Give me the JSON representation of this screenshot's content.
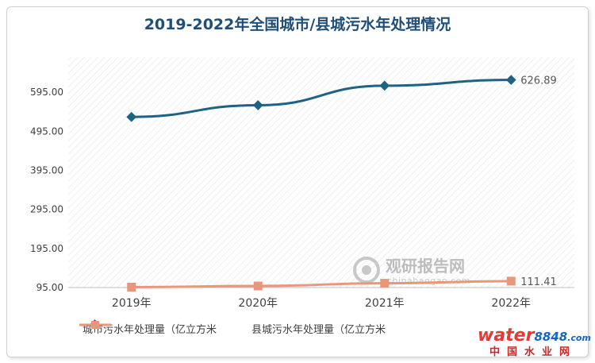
{
  "chart_data": {
    "type": "line",
    "title": "2019-2022年全国城市/县城污水年处理情况",
    "categories": [
      "2019年",
      "2020年",
      "2021年",
      "2022年"
    ],
    "series": [
      {
        "name": "城市污水年处理量（亿立方米",
        "values": [
          532.0,
          562.0,
          612.0,
          626.89
        ],
        "color": "#1f6384"
      },
      {
        "name": "县城污水年处理量（亿立方米",
        "values": [
          96.0,
          99.0,
          106.0,
          111.41
        ],
        "color": "#e9967a"
      }
    ],
    "data_labels": [
      "626.89",
      "111.41"
    ],
    "y_ticks": [
      "95.00",
      "195.00",
      "295.00",
      "395.00",
      "495.00",
      "595.00"
    ],
    "ylim": [
      95,
      685
    ],
    "grid": false,
    "legend_position": "bottom-left"
  },
  "watermarks": {
    "center_brand": "观研报告网",
    "center_url": "chinabaogao.com",
    "corner_brand_a": "water",
    "corner_brand_b": "8848",
    "corner_suffix": ".com",
    "corner_cn": "中国水业网"
  }
}
